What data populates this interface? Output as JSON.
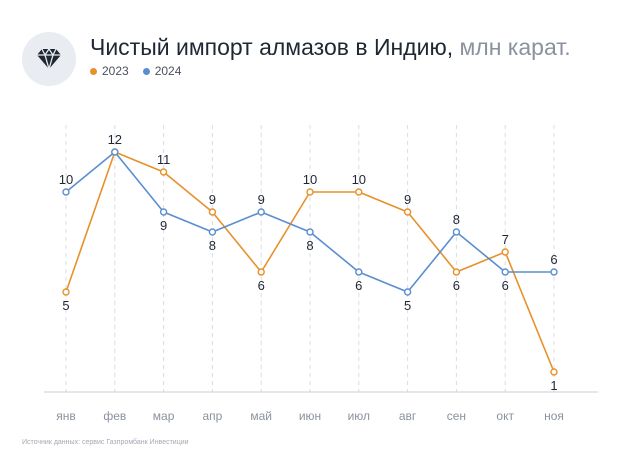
{
  "header": {
    "title_main": "Чистый импорт алмазов в Индию,",
    "title_unit": "млн карат.",
    "logo_icon": "diamond-icon"
  },
  "legend": [
    {
      "name": "2023",
      "color": "#e8902a"
    },
    {
      "name": "2024",
      "color": "#5a8ed0"
    }
  ],
  "source": "Источник данных: сервис Газпромбанк Инвестиции",
  "chart_data": {
    "type": "line",
    "title": "Чистый импорт алмазов в Индию, млн карат.",
    "categories": [
      "янв",
      "фев",
      "мар",
      "апр",
      "май",
      "июн",
      "июл",
      "авг",
      "сен",
      "окт",
      "ноя"
    ],
    "series": [
      {
        "name": "2023",
        "color": "#e8902a",
        "values": [
          5,
          12,
          11,
          9,
          6,
          10,
          10,
          9,
          6,
          7,
          1
        ]
      },
      {
        "name": "2024",
        "color": "#5a8ed0",
        "values": [
          10,
          12,
          9,
          8,
          9,
          8,
          6,
          5,
          8,
          6,
          6
        ]
      }
    ],
    "ylim": [
      0,
      13
    ],
    "grid": "vertical dashed",
    "legend_position": "top-left"
  }
}
